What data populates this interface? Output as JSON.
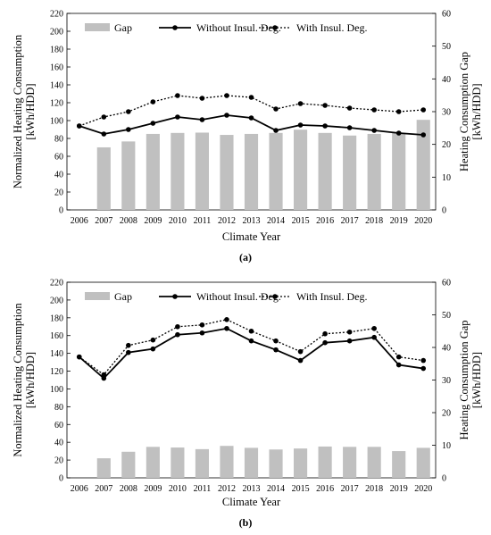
{
  "chart_data": [
    {
      "type": "bar",
      "panel_label": "(a)",
      "xlabel": "Climate Year",
      "ylabel_left": [
        "Normalized Heating Consumption",
        "[kWh/HDD]"
      ],
      "ylabel_right": [
        "Heating Consumption Gap",
        "[kWh/HDD]"
      ],
      "categories": [
        "2006",
        "2007",
        "2008",
        "2009",
        "2010",
        "2011",
        "2012",
        "2013",
        "2014",
        "2015",
        "2016",
        "2017",
        "2018",
        "2019",
        "2020"
      ],
      "ylim_left": [
        0,
        220
      ],
      "yticks_left": [
        0,
        20,
        40,
        60,
        80,
        100,
        120,
        140,
        160,
        180,
        200,
        220
      ],
      "ylim_right": [
        0,
        60
      ],
      "yticks_right": [
        0,
        10,
        20,
        30,
        40,
        50,
        60
      ],
      "legend_position": "top",
      "series": [
        {
          "name": "Gap",
          "kind": "bar",
          "axis": "right",
          "color": "#c0c0c0",
          "values": [
            null,
            19.1,
            20.9,
            23.2,
            23.5,
            23.6,
            22.9,
            23.2,
            23.5,
            24.5,
            23.5,
            22.7,
            23.2,
            23.5,
            27.5
          ]
        },
        {
          "name": "Without Insul. Deg.",
          "kind": "line-solid",
          "axis": "left",
          "color": "#000000",
          "values": [
            94,
            85,
            90,
            97,
            104,
            101,
            106,
            103,
            89,
            95,
            94,
            92,
            89,
            86,
            84
          ]
        },
        {
          "name": "With Insul. Deg.",
          "kind": "line-dotted",
          "axis": "left",
          "color": "#000000",
          "values": [
            94,
            104,
            110,
            121,
            128,
            125,
            128,
            126,
            113,
            119,
            117,
            114,
            112,
            110,
            112
          ]
        }
      ]
    },
    {
      "type": "bar",
      "panel_label": "(b)",
      "xlabel": "Climate Year",
      "ylabel_left": [
        "Normalized Heating Consumption",
        "[kWh/HDD]"
      ],
      "ylabel_right": [
        "Heating Consumption Gap",
        "[kWh/HDD]"
      ],
      "categories": [
        "2006",
        "2007",
        "2008",
        "2009",
        "2010",
        "2011",
        "2012",
        "2013",
        "2014",
        "2015",
        "2016",
        "2017",
        "2018",
        "2019",
        "2020"
      ],
      "ylim_left": [
        0,
        220
      ],
      "yticks_left": [
        0,
        20,
        40,
        60,
        80,
        100,
        120,
        140,
        160,
        180,
        200,
        220
      ],
      "ylim_right": [
        0,
        60
      ],
      "yticks_right": [
        0,
        10,
        20,
        30,
        40,
        50,
        60
      ],
      "legend_position": "top",
      "series": [
        {
          "name": "Gap",
          "kind": "bar",
          "axis": "right",
          "color": "#c0c0c0",
          "values": [
            null,
            6,
            8,
            9.5,
            9.3,
            8.8,
            9.8,
            9.2,
            8.7,
            9,
            9.6,
            9.5,
            9.5,
            8.2,
            9.2
          ]
        },
        {
          "name": "Without Insul. Deg.",
          "kind": "line-solid",
          "axis": "left",
          "color": "#000000",
          "values": [
            136,
            112,
            141,
            145,
            161,
            163,
            168,
            154,
            144,
            132,
            152,
            154,
            158,
            127,
            123
          ]
        },
        {
          "name": "With Insul. Deg.",
          "kind": "line-dotted",
          "axis": "left",
          "color": "#000000",
          "values": [
            136,
            116,
            149,
            155,
            170,
            172,
            178,
            165,
            154,
            142,
            162,
            164,
            168,
            136,
            132
          ]
        }
      ]
    }
  ]
}
